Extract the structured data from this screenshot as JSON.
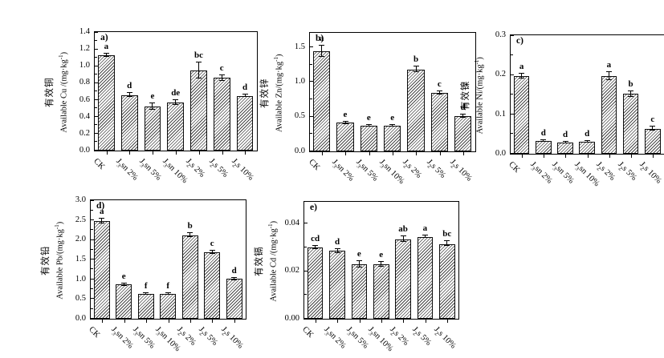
{
  "figure": {
    "background": "#ffffff",
    "axis_color": "#000000",
    "text_color": "#000000",
    "bar_fill": "#ffffff",
    "bar_hatch_color": "#474747",
    "bar_border_color": "#0d0d0d",
    "hatch_style": "diagonal-forward-slash",
    "x_label_rotation_deg": 45
  },
  "categories": [
    {
      "pre": "CK",
      "sub": "",
      "post": ""
    },
    {
      "pre": "J",
      "sub": "3",
      "post": "sn 2%"
    },
    {
      "pre": "J",
      "sub": "3",
      "post": "sn 5%"
    },
    {
      "pre": "J",
      "sub": "3",
      "post": "sn 10%"
    },
    {
      "pre": "J",
      "sub": "2",
      "post": "s 2%"
    },
    {
      "pre": "J",
      "sub": "2",
      "post": "s 5%"
    },
    {
      "pre": "J",
      "sub": "2",
      "post": "s 10%"
    }
  ],
  "chart_data": [
    {
      "id": "a",
      "type": "bar",
      "panel_label": "a)",
      "ylabel_cn": "有效铜",
      "ylabel_en_pre": "Available Cu /(mg·kg",
      "ylabel_sup": "-1",
      "ylabel_en_post": ")",
      "yticks": [
        "0.0",
        "0.2",
        "0.4",
        "0.6",
        "0.8",
        "1.0",
        "1.2",
        "1.4"
      ],
      "ylim": [
        0,
        1.4
      ],
      "values": [
        1.13,
        0.66,
        0.52,
        0.57,
        0.95,
        0.86,
        0.65
      ],
      "errors": [
        0.02,
        0.03,
        0.04,
        0.03,
        0.1,
        0.04,
        0.02
      ],
      "sig_letters": [
        "a",
        "d",
        "e",
        "de",
        "bc",
        "c",
        "d"
      ]
    },
    {
      "id": "b",
      "type": "bar",
      "panel_label": "b)",
      "ylabel_cn": "有效锌",
      "ylabel_en_pre": "Available Zn/(mg·kg",
      "ylabel_sup": "-1",
      "ylabel_en_post": ")",
      "yticks": [
        "0.0",
        "0.5",
        "1.0",
        "1.5"
      ],
      "ylim": [
        0,
        1.7
      ],
      "values": [
        1.44,
        0.41,
        0.37,
        0.37,
        1.18,
        0.84,
        0.51
      ],
      "errors": [
        0.09,
        0.02,
        0.02,
        0.02,
        0.05,
        0.03,
        0.03
      ],
      "sig_letters": [
        "a",
        "e",
        "e",
        "e",
        "b",
        "c",
        "d"
      ]
    },
    {
      "id": "c",
      "type": "bar",
      "panel_label": "c)",
      "ylabel_cn": "有效镍",
      "ylabel_en_pre": "Available Ni/(mg·kg",
      "ylabel_sup": "-1",
      "ylabel_en_post": ")",
      "yticks": [
        "0.0",
        "0.1",
        "0.2",
        "0.3"
      ],
      "ylim": [
        0,
        0.3
      ],
      "values": [
        0.197,
        0.032,
        0.029,
        0.03,
        0.197,
        0.152,
        0.064
      ],
      "errors": [
        0.007,
        0.003,
        0.002,
        0.003,
        0.012,
        0.008,
        0.007
      ],
      "sig_letters": [
        "a",
        "d",
        "d",
        "d",
        "a",
        "b",
        "c"
      ]
    },
    {
      "id": "d",
      "type": "bar",
      "panel_label": "d)",
      "ylabel_cn": "有效铅",
      "ylabel_en_pre": "Available Pb/(mg·kg",
      "ylabel_sup": "-1",
      "ylabel_en_post": ")",
      "yticks": [
        "0.0",
        "0.5",
        "1.0",
        "1.5",
        "2.0",
        "2.5",
        "3.0"
      ],
      "ylim": [
        0,
        3.0
      ],
      "values": [
        2.48,
        0.87,
        0.63,
        0.63,
        2.12,
        1.69,
        1.01
      ],
      "errors": [
        0.07,
        0.04,
        0.03,
        0.03,
        0.06,
        0.05,
        0.04
      ],
      "sig_letters": [
        "a",
        "e",
        "f",
        "f",
        "b",
        "c",
        "d"
      ]
    },
    {
      "id": "e",
      "type": "bar",
      "panel_label": "e)",
      "ylabel_cn": "有效镉",
      "ylabel_en_pre": "Available Cd /(mg·kg",
      "ylabel_sup": "-1",
      "ylabel_en_post": ")",
      "yticks": [
        "0.00",
        "0.02",
        "0.04"
      ],
      "ylim": [
        0,
        0.049
      ],
      "values": [
        0.03,
        0.0285,
        0.023,
        0.023,
        0.0335,
        0.0345,
        0.0315
      ],
      "errors": [
        0.0008,
        0.001,
        0.0015,
        0.0012,
        0.0012,
        0.0008,
        0.0012
      ],
      "sig_letters": [
        "cd",
        "d",
        "e",
        "e",
        "ab",
        "a",
        "bc"
      ]
    }
  ]
}
